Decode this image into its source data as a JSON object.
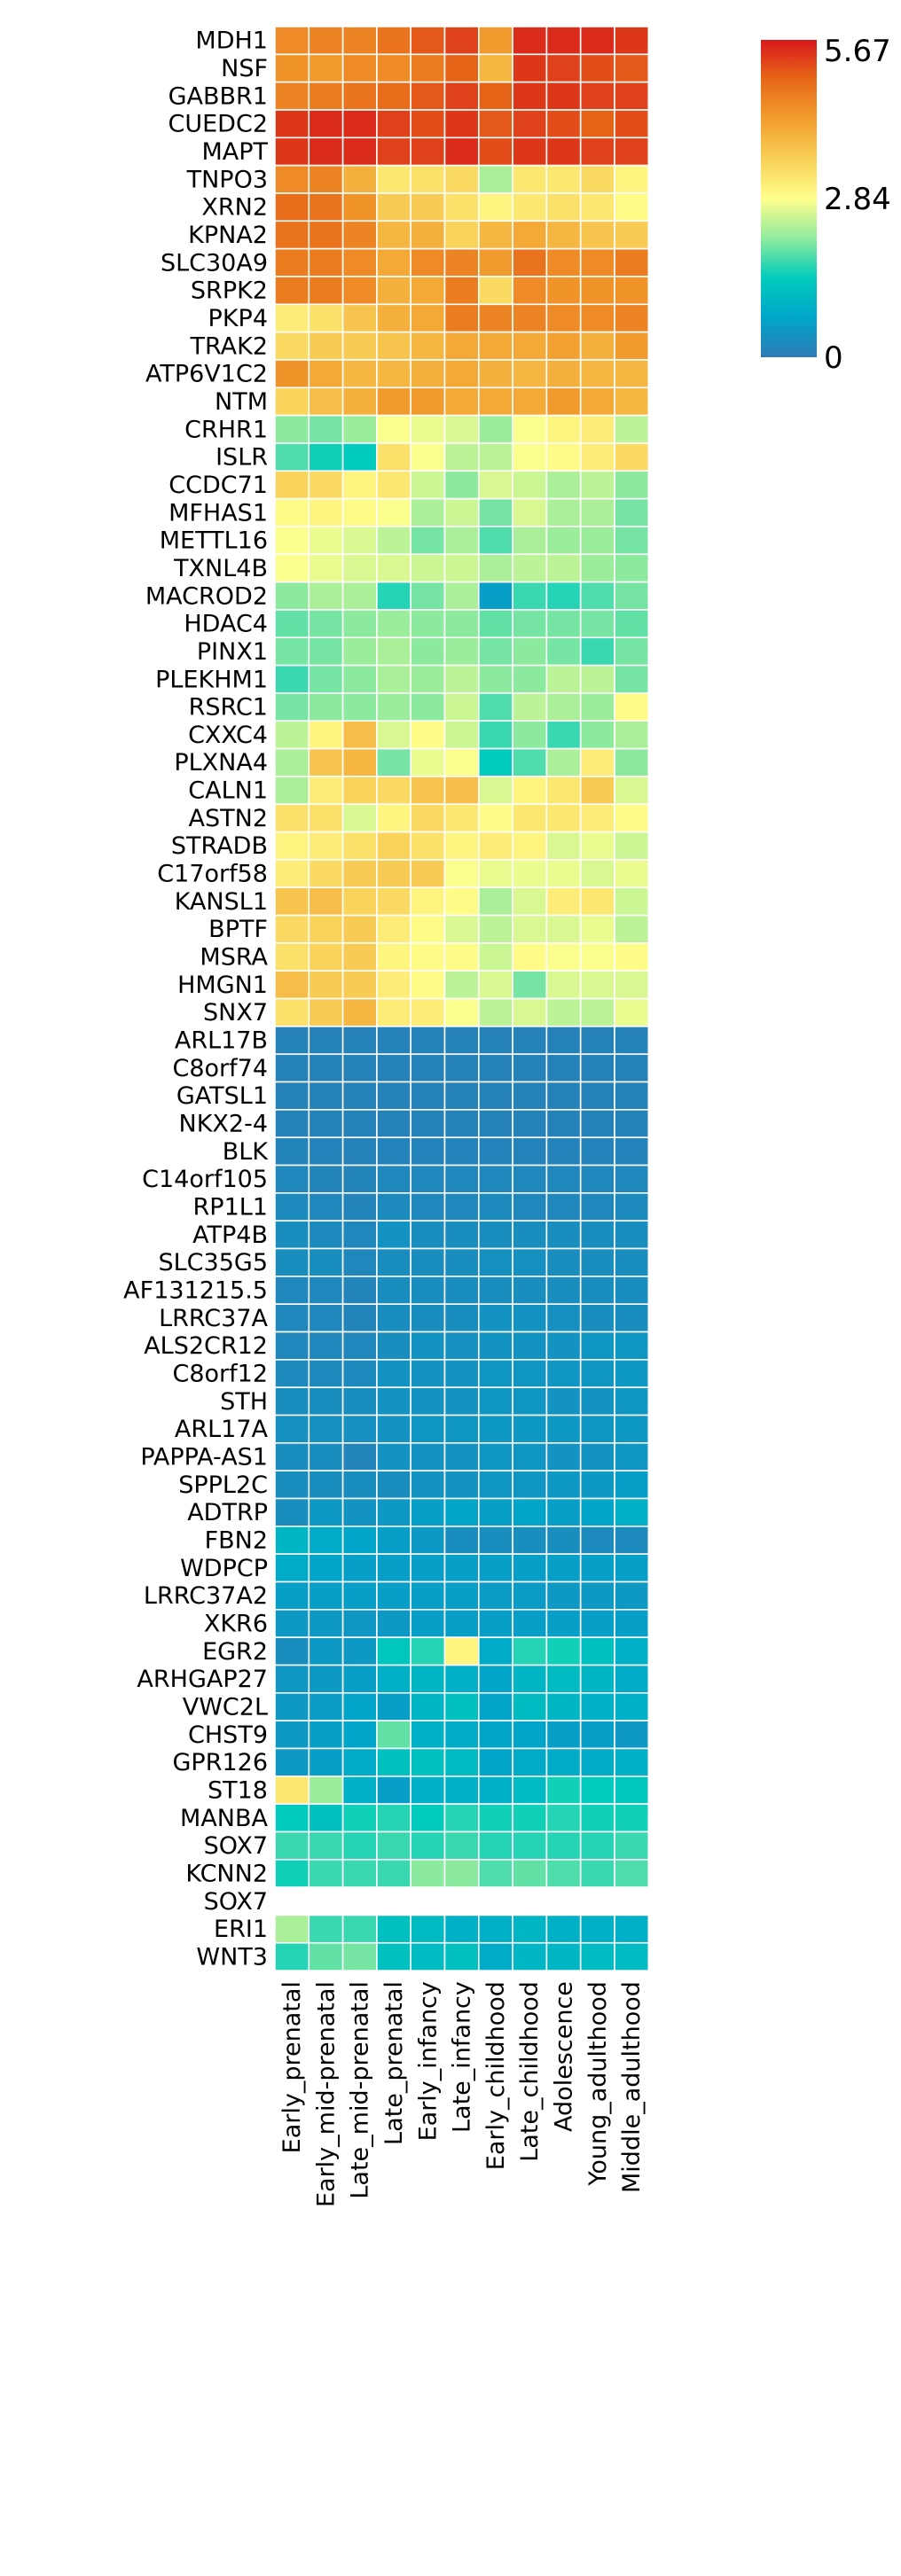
{
  "chart_data": {
    "type": "heatmap",
    "columns": [
      "Early_prenatal",
      "Early_mid-prenatal",
      "Late_mid-prenatal",
      "Late_prenatal",
      "Early_infancy",
      "Late_infancy",
      "Early_childhood",
      "Late_childhood",
      "Adolescence",
      "Young_adulthood",
      "Middle_adulthood"
    ],
    "rows": [
      "MDH1",
      "NSF",
      "GABBR1",
      "CUEDC2",
      "MAPT",
      "TNPO3",
      "XRN2",
      "KPNA2",
      "SLC30A9",
      "SRPK2",
      "PKP4",
      "TRAK2",
      "ATP6V1C2",
      "NTM",
      "CRHR1",
      "ISLR",
      "CCDC71",
      "MFHAS1",
      "METTL16",
      "TXNL4B",
      "MACROD2",
      "HDAC4",
      "PINX1",
      "PLEKHM1",
      "RSRC1",
      "CXXC4",
      "PLXNA4",
      "CALN1",
      "ASTN2",
      "STRADB",
      "C17orf58",
      "KANSL1",
      "BPTF",
      "MSRA",
      "HMGN1",
      "SNX7",
      "ARL17B",
      "C8orf74",
      "GATSL1",
      "NKX2-4",
      "BLK",
      "C14orf105",
      "RP1L1",
      "ATP4B",
      "SLC35G5",
      "AF131215.5",
      "LRRC37A",
      "ALS2CR12",
      "C8orf12",
      "STH",
      "ARL17A",
      "PAPPA-AS1",
      "SPPL2C",
      "ADTRP",
      "FBN2",
      "WDPCP",
      "LRRC37A2",
      "XKR6",
      "EGR2",
      "ARHGAP27",
      "VWC2L",
      "CHST9",
      "GPR126",
      "ST18",
      "MANBA",
      "SOX7",
      "KCNN2",
      "SOX7",
      "ERI1",
      "WNT3"
    ],
    "values": [
      [
        4.5,
        4.6,
        4.6,
        4.8,
        5.1,
        5.3,
        4.3,
        5.5,
        5.5,
        5.5,
        5.4
      ],
      [
        4.4,
        4.3,
        4.5,
        4.5,
        4.7,
        5.0,
        3.9,
        5.4,
        5.3,
        5.2,
        5.1
      ],
      [
        4.6,
        4.7,
        4.8,
        4.9,
        5.1,
        5.3,
        5.0,
        5.4,
        5.4,
        5.3,
        5.3
      ],
      [
        5.4,
        5.5,
        5.5,
        5.3,
        5.2,
        5.4,
        5.1,
        5.3,
        5.2,
        5.0,
        5.2
      ],
      [
        5.4,
        5.5,
        5.5,
        5.3,
        5.3,
        5.5,
        5.2,
        5.4,
        5.4,
        5.3,
        5.3
      ],
      [
        4.5,
        4.6,
        4.0,
        3.2,
        3.3,
        3.4,
        2.3,
        3.2,
        3.2,
        3.4,
        3.0
      ],
      [
        4.9,
        4.8,
        4.4,
        3.6,
        3.6,
        3.3,
        3.0,
        3.2,
        3.3,
        3.2,
        2.9
      ],
      [
        4.8,
        4.8,
        4.6,
        3.9,
        4.0,
        3.5,
        3.9,
        4.1,
        3.9,
        3.7,
        3.6
      ],
      [
        4.7,
        4.7,
        4.5,
        4.1,
        4.5,
        4.6,
        4.3,
        4.8,
        4.5,
        4.5,
        4.7
      ],
      [
        4.7,
        4.7,
        4.5,
        4.0,
        4.1,
        4.7,
        3.4,
        4.5,
        4.4,
        4.4,
        4.4
      ],
      [
        3.1,
        3.3,
        3.7,
        4.0,
        4.1,
        4.7,
        4.6,
        4.6,
        4.5,
        4.5,
        4.6
      ],
      [
        3.4,
        3.6,
        3.6,
        3.7,
        3.9,
        4.1,
        4.1,
        4.1,
        4.2,
        4.0,
        4.3
      ],
      [
        4.4,
        4.1,
        3.9,
        3.9,
        4.0,
        4.1,
        4.0,
        3.9,
        4.0,
        3.9,
        3.9
      ],
      [
        3.5,
        3.8,
        4.0,
        4.3,
        4.3,
        4.1,
        4.1,
        4.1,
        4.3,
        4.1,
        3.9
      ],
      [
        2.1,
        2.0,
        2.2,
        2.8,
        2.7,
        2.6,
        2.2,
        2.8,
        3.0,
        3.1,
        2.4
      ],
      [
        1.8,
        1.5,
        1.4,
        3.3,
        2.8,
        2.4,
        2.4,
        2.8,
        2.9,
        3.1,
        3.4
      ],
      [
        3.5,
        3.4,
        3.0,
        3.2,
        2.5,
        2.1,
        2.6,
        2.5,
        2.3,
        2.4,
        2.1
      ],
      [
        2.9,
        3.0,
        2.9,
        2.8,
        2.3,
        2.5,
        2.0,
        2.6,
        2.3,
        2.3,
        2.0
      ],
      [
        2.8,
        2.7,
        2.6,
        2.4,
        2.0,
        2.3,
        1.8,
        2.3,
        2.2,
        2.2,
        2.0
      ],
      [
        2.8,
        2.7,
        2.6,
        2.6,
        2.5,
        2.5,
        2.3,
        2.4,
        2.4,
        2.2,
        2.1
      ],
      [
        2.1,
        2.3,
        2.3,
        1.6,
        2.0,
        2.3,
        0.6,
        1.7,
        1.6,
        1.8,
        2.0
      ],
      [
        1.9,
        2.0,
        2.1,
        2.2,
        2.1,
        2.1,
        1.9,
        2.0,
        2.0,
        2.0,
        1.9
      ],
      [
        2.0,
        2.0,
        2.2,
        2.3,
        2.1,
        2.2,
        2.0,
        2.1,
        2.0,
        1.7,
        2.0
      ],
      [
        1.7,
        2.0,
        2.1,
        2.3,
        2.2,
        2.4,
        2.1,
        2.1,
        2.4,
        2.4,
        2.0
      ],
      [
        2.0,
        2.1,
        2.1,
        2.2,
        2.1,
        2.5,
        1.8,
        2.4,
        2.3,
        2.2,
        2.9
      ],
      [
        2.4,
        3.0,
        3.8,
        2.6,
        2.9,
        2.5,
        1.7,
        2.1,
        1.7,
        2.1,
        2.3
      ],
      [
        2.3,
        3.7,
        3.9,
        2.0,
        2.7,
        2.8,
        1.4,
        1.8,
        2.3,
        3.1,
        2.1
      ],
      [
        2.3,
        3.1,
        3.5,
        3.4,
        3.7,
        3.8,
        2.6,
        3.0,
        3.2,
        3.6,
        2.6
      ],
      [
        3.3,
        3.3,
        2.6,
        3.0,
        3.4,
        3.2,
        2.9,
        3.2,
        3.2,
        3.1,
        2.9
      ],
      [
        3.0,
        3.1,
        3.3,
        3.5,
        3.3,
        3.0,
        3.1,
        3.0,
        2.6,
        2.7,
        2.5
      ],
      [
        3.1,
        3.4,
        3.6,
        3.6,
        3.6,
        2.8,
        2.7,
        2.7,
        2.7,
        2.6,
        2.7
      ],
      [
        3.7,
        3.8,
        3.5,
        3.4,
        3.0,
        2.9,
        2.3,
        2.6,
        3.1,
        3.2,
        2.5
      ],
      [
        3.4,
        3.5,
        3.6,
        3.1,
        2.9,
        2.6,
        2.4,
        2.6,
        2.6,
        2.7,
        2.4
      ],
      [
        3.3,
        3.5,
        3.6,
        3.0,
        2.9,
        2.9,
        2.5,
        2.9,
        2.8,
        2.8,
        2.9
      ],
      [
        3.8,
        3.6,
        3.6,
        3.1,
        2.9,
        2.4,
        2.6,
        2.0,
        2.6,
        2.6,
        2.6
      ],
      [
        3.3,
        3.6,
        3.9,
        3.1,
        3.1,
        2.8,
        2.4,
        2.6,
        2.4,
        2.4,
        2.7
      ],
      [
        0.12,
        0.12,
        0.12,
        0.12,
        0.12,
        0.12,
        0.12,
        0.12,
        0.12,
        0.12,
        0.12
      ],
      [
        0.12,
        0.12,
        0.12,
        0.12,
        0.12,
        0.12,
        0.12,
        0.12,
        0.12,
        0.12,
        0.12
      ],
      [
        0.12,
        0.12,
        0.12,
        0.12,
        0.12,
        0.12,
        0.12,
        0.12,
        0.12,
        0.12,
        0.12
      ],
      [
        0.12,
        0.12,
        0.12,
        0.12,
        0.12,
        0.12,
        0.12,
        0.12,
        0.12,
        0.12,
        0.12
      ],
      [
        0.15,
        0.13,
        0.12,
        0.13,
        0.14,
        0.13,
        0.14,
        0.13,
        0.13,
        0.13,
        0.13
      ],
      [
        0.2,
        0.15,
        0.15,
        0.2,
        0.2,
        0.2,
        0.2,
        0.2,
        0.2,
        0.2,
        0.2
      ],
      [
        0.25,
        0.2,
        0.15,
        0.25,
        0.2,
        0.2,
        0.25,
        0.2,
        0.2,
        0.2,
        0.25
      ],
      [
        0.3,
        0.25,
        0.2,
        0.4,
        0.3,
        0.3,
        0.3,
        0.3,
        0.3,
        0.3,
        0.3
      ],
      [
        0.3,
        0.3,
        0.2,
        0.3,
        0.3,
        0.3,
        0.35,
        0.35,
        0.3,
        0.3,
        0.3
      ],
      [
        0.2,
        0.2,
        0.15,
        0.3,
        0.3,
        0.3,
        0.3,
        0.3,
        0.3,
        0.3,
        0.3
      ],
      [
        0.2,
        0.2,
        0.15,
        0.3,
        0.3,
        0.3,
        0.4,
        0.4,
        0.35,
        0.3,
        0.3
      ],
      [
        0.2,
        0.2,
        0.2,
        0.3,
        0.4,
        0.35,
        0.4,
        0.4,
        0.4,
        0.45,
        0.45
      ],
      [
        0.25,
        0.25,
        0.25,
        0.4,
        0.4,
        0.4,
        0.45,
        0.45,
        0.45,
        0.45,
        0.5
      ],
      [
        0.3,
        0.3,
        0.3,
        0.4,
        0.4,
        0.4,
        0.45,
        0.45,
        0.4,
        0.4,
        0.45
      ],
      [
        0.35,
        0.35,
        0.35,
        0.4,
        0.45,
        0.45,
        0.5,
        0.5,
        0.5,
        0.45,
        0.5
      ],
      [
        0.3,
        0.3,
        0.15,
        0.4,
        0.4,
        0.4,
        0.45,
        0.45,
        0.4,
        0.4,
        0.45
      ],
      [
        0.3,
        0.3,
        0.3,
        0.3,
        0.4,
        0.4,
        0.45,
        0.45,
        0.5,
        0.5,
        0.6
      ],
      [
        0.3,
        0.5,
        0.4,
        0.5,
        0.6,
        0.7,
        0.6,
        0.7,
        0.6,
        0.7,
        0.9
      ],
      [
        1.0,
        0.8,
        0.7,
        0.6,
        0.5,
        0.3,
        0.3,
        0.3,
        0.3,
        0.25,
        0.25
      ],
      [
        0.8,
        0.7,
        0.6,
        0.6,
        0.6,
        0.6,
        0.6,
        0.6,
        0.6,
        0.6,
        0.6
      ],
      [
        0.6,
        0.6,
        0.6,
        0.6,
        0.6,
        0.6,
        0.55,
        0.55,
        0.5,
        0.5,
        0.5
      ],
      [
        0.5,
        0.5,
        0.45,
        0.5,
        0.6,
        0.6,
        0.6,
        0.6,
        0.6,
        0.6,
        0.6
      ],
      [
        0.3,
        0.5,
        0.5,
        1.3,
        1.6,
        3.0,
        0.8,
        1.6,
        1.5,
        1.2,
        0.9
      ],
      [
        0.45,
        0.5,
        0.6,
        0.9,
        1.0,
        0.9,
        0.7,
        1.0,
        1.1,
        1.0,
        0.8
      ],
      [
        0.5,
        0.55,
        0.7,
        0.6,
        1.0,
        1.2,
        0.7,
        1.1,
        1.0,
        0.9,
        0.9
      ],
      [
        0.5,
        0.6,
        0.7,
        1.9,
        0.9,
        0.8,
        0.7,
        0.7,
        0.6,
        0.6,
        0.5
      ],
      [
        0.5,
        0.6,
        0.8,
        1.2,
        1.2,
        1.1,
        0.7,
        0.8,
        0.8,
        0.8,
        0.9
      ],
      [
        3.2,
        2.2,
        0.9,
        0.6,
        0.9,
        0.9,
        0.9,
        1.1,
        1.5,
        1.4,
        1.3
      ],
      [
        1.4,
        1.2,
        1.5,
        1.6,
        1.4,
        1.6,
        1.5,
        1.5,
        1.6,
        1.5,
        1.5
      ],
      [
        1.7,
        1.7,
        1.6,
        1.7,
        1.6,
        1.7,
        1.6,
        1.6,
        1.6,
        1.6,
        1.7
      ],
      [
        1.5,
        1.7,
        1.7,
        1.7,
        2.1,
        2.1,
        1.8,
        1.9,
        1.8,
        1.7,
        1.8
      ],
      [
        null,
        null,
        null,
        null,
        null,
        null,
        null,
        null,
        null,
        null,
        null
      ],
      [
        2.3,
        1.7,
        1.7,
        1.2,
        1.1,
        0.9,
        0.9,
        1.0,
        0.9,
        0.9,
        0.9
      ],
      [
        1.6,
        1.9,
        2.0,
        1.2,
        1.1,
        1.2,
        0.8,
        1.0,
        1.0,
        1.1,
        1.1
      ]
    ],
    "colorbar": {
      "min": 0,
      "max": 5.67,
      "ticks": [
        "5.67",
        "2.84",
        "0"
      ]
    },
    "colormap": [
      "#2c7bb6",
      "#00a6ca",
      "#00ccbc",
      "#90eb9d",
      "#ffff8c",
      "#f9d057",
      "#f29e2e",
      "#e76818",
      "#d7191c"
    ],
    "missing_color": "#ffffff"
  }
}
